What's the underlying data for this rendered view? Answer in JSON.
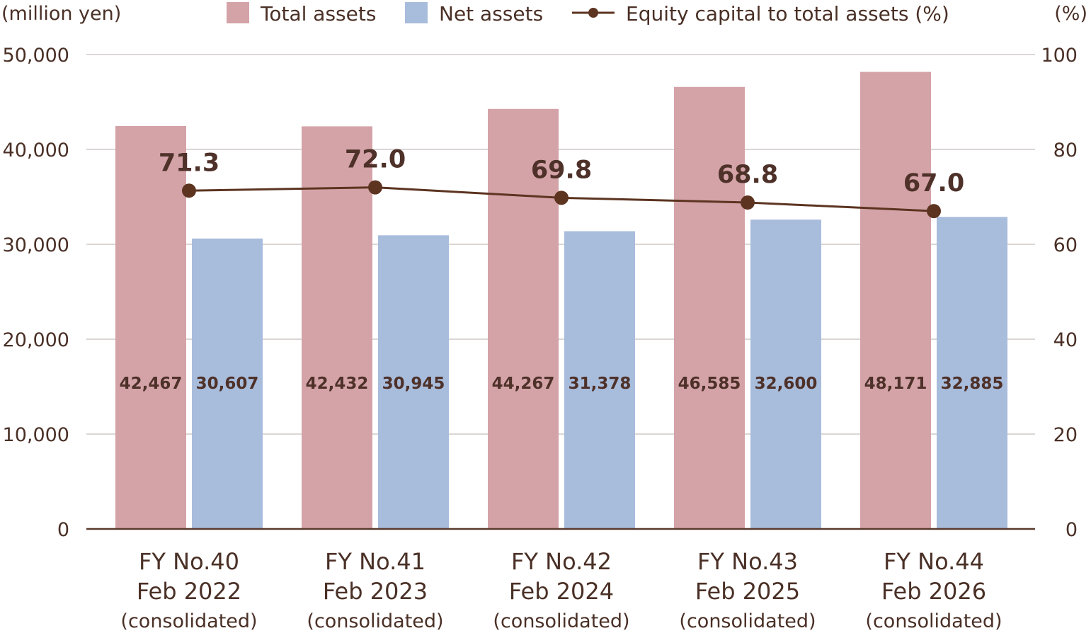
{
  "chart_data": {
    "type": "bar",
    "categories": [
      [
        "FY No.40",
        "Feb 2022",
        "(consolidated)"
      ],
      [
        "FY No.41",
        "Feb 2023",
        "(consolidated)"
      ],
      [
        "FY No.42",
        "Feb 2024",
        "(consolidated)"
      ],
      [
        "FY No.43",
        "Feb 2025",
        "(consolidated)"
      ],
      [
        "FY No.44",
        "Feb 2026",
        "(consolidated)"
      ]
    ],
    "y_left": {
      "label": "(million yen)",
      "lim": [
        0,
        50000
      ],
      "ticks": [
        "0",
        "10,000",
        "20,000",
        "30,000",
        "40,000",
        "50,000"
      ]
    },
    "y_right": {
      "label": "(%)",
      "lim": [
        0,
        100
      ],
      "ticks": [
        "0",
        "20",
        "40",
        "60",
        "80",
        "100"
      ]
    },
    "grid": true,
    "legend_position": "top",
    "series": [
      {
        "name": "Total assets",
        "type": "bar",
        "axis": "left",
        "color": "#d4a3a8",
        "values": [
          42467,
          42432,
          44267,
          46585,
          48171
        ],
        "labels": [
          "42,467",
          "42,432",
          "44,267",
          "46,585",
          "48,171"
        ]
      },
      {
        "name": "Net assets",
        "type": "bar",
        "axis": "left",
        "color": "#a8bcdc",
        "values": [
          30607,
          30945,
          31378,
          32600,
          32885
        ],
        "labels": [
          "30,607",
          "30,945",
          "31,378",
          "32,600",
          "32,885"
        ]
      },
      {
        "name": "Equity capital to total assets (%)",
        "type": "line",
        "axis": "right",
        "color": "#5c3420",
        "values": [
          71.3,
          72.0,
          69.8,
          68.8,
          67.0
        ],
        "labels": [
          "71.3",
          "72.0",
          "69.8",
          "68.8",
          "67.0"
        ]
      }
    ]
  }
}
